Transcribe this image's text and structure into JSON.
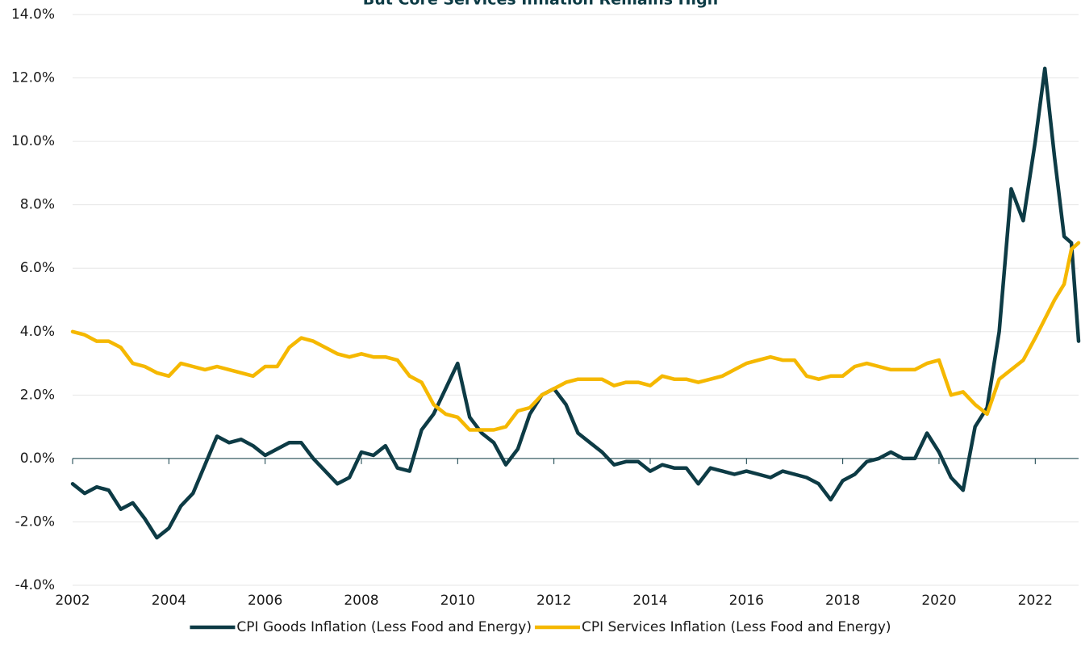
{
  "chart_data": {
    "type": "line",
    "title": "But Core Services Inflation Remains High",
    "x": [
      2002,
      2002.25,
      2002.5,
      2002.75,
      2003,
      2003.25,
      2003.5,
      2003.75,
      2004,
      2004.25,
      2004.5,
      2004.75,
      2005,
      2005.25,
      2005.5,
      2005.75,
      2006,
      2006.25,
      2006.5,
      2006.75,
      2007,
      2007.25,
      2007.5,
      2007.75,
      2008,
      2008.25,
      2008.5,
      2008.75,
      2009,
      2009.25,
      2009.5,
      2009.75,
      2010,
      2010.25,
      2010.5,
      2010.75,
      2011,
      2011.25,
      2011.5,
      2011.75,
      2012,
      2012.25,
      2012.5,
      2012.75,
      2013,
      2013.25,
      2013.5,
      2013.75,
      2014,
      2014.25,
      2014.5,
      2014.75,
      2015,
      2015.25,
      2015.5,
      2015.75,
      2016,
      2016.25,
      2016.5,
      2016.75,
      2017,
      2017.25,
      2017.5,
      2017.75,
      2018,
      2018.25,
      2018.5,
      2018.75,
      2019,
      2019.25,
      2019.5,
      2019.75,
      2020,
      2020.25,
      2020.5,
      2020.75,
      2021,
      2021.25,
      2021.5,
      2021.75,
      2022,
      2022.2,
      2022.4,
      2022.6,
      2022.75,
      2022.9
    ],
    "series": [
      {
        "name": "CPI Goods Inflation (Less Food and Energy)",
        "color": "#0d3b45",
        "values": [
          -0.8,
          -1.1,
          -0.9,
          -1.0,
          -1.6,
          -1.4,
          -1.9,
          -2.5,
          -2.2,
          -1.5,
          -1.1,
          -0.2,
          0.7,
          0.5,
          0.6,
          0.4,
          0.1,
          0.3,
          0.5,
          0.5,
          0.0,
          -0.4,
          -0.8,
          -0.6,
          0.2,
          0.1,
          0.4,
          -0.3,
          -0.4,
          0.9,
          1.4,
          2.2,
          3.0,
          1.3,
          0.8,
          0.5,
          -0.2,
          0.3,
          1.4,
          2.0,
          2.2,
          1.7,
          0.8,
          0.5,
          0.2,
          -0.2,
          -0.1,
          -0.1,
          -0.4,
          -0.2,
          -0.3,
          -0.3,
          -0.8,
          -0.3,
          -0.4,
          -0.5,
          -0.4,
          -0.5,
          -0.6,
          -0.4,
          -0.5,
          -0.6,
          -0.8,
          -1.3,
          -0.7,
          -0.5,
          -0.1,
          0.0,
          0.2,
          0.0,
          0.0,
          0.8,
          0.2,
          -0.6,
          -1.0,
          1.0,
          1.6,
          4.0,
          8.5,
          7.5,
          10.0,
          12.3,
          9.5,
          7.0,
          6.8,
          3.7
        ]
      },
      {
        "name": "CPI Services Inflation (Less Food and Energy)",
        "color": "#f5b800",
        "values": [
          4.0,
          3.9,
          3.7,
          3.7,
          3.5,
          3.0,
          2.9,
          2.7,
          2.6,
          3.0,
          2.9,
          2.8,
          2.9,
          2.8,
          2.7,
          2.6,
          2.9,
          2.9,
          3.5,
          3.8,
          3.7,
          3.5,
          3.3,
          3.2,
          3.3,
          3.2,
          3.2,
          3.1,
          2.6,
          2.4,
          1.7,
          1.4,
          1.3,
          0.9,
          0.9,
          0.9,
          1.0,
          1.5,
          1.6,
          2.0,
          2.2,
          2.4,
          2.5,
          2.5,
          2.5,
          2.3,
          2.4,
          2.4,
          2.3,
          2.6,
          2.5,
          2.5,
          2.4,
          2.5,
          2.6,
          2.8,
          3.0,
          3.1,
          3.2,
          3.1,
          3.1,
          2.6,
          2.5,
          2.6,
          2.6,
          2.9,
          3.0,
          2.9,
          2.8,
          2.8,
          2.8,
          3.0,
          3.1,
          2.0,
          2.1,
          1.7,
          1.4,
          2.5,
          2.8,
          3.1,
          3.8,
          4.4,
          5.0,
          5.5,
          6.6,
          6.8
        ]
      }
    ],
    "xlim": [
      2002,
      2022.9
    ],
    "xticks": [
      2002,
      2004,
      2006,
      2008,
      2010,
      2012,
      2014,
      2016,
      2018,
      2020,
      2022
    ],
    "ylim": [
      -4,
      14
    ],
    "yticks": [
      {
        "value": -4,
        "label": "-4.0%"
      },
      {
        "value": -2,
        "label": "-2.0%"
      },
      {
        "value": 0,
        "label": "0.0%"
      },
      {
        "value": 2,
        "label": "2.0%"
      },
      {
        "value": 4,
        "label": "4.0%"
      },
      {
        "value": 6,
        "label": "6.0%"
      },
      {
        "value": 8,
        "label": "8.0%"
      },
      {
        "value": 10,
        "label": "10.0%"
      },
      {
        "value": 12,
        "label": "12.0%"
      },
      {
        "value": 14,
        "label": "14.0%"
      }
    ],
    "grid": true,
    "legend": "bottom"
  }
}
